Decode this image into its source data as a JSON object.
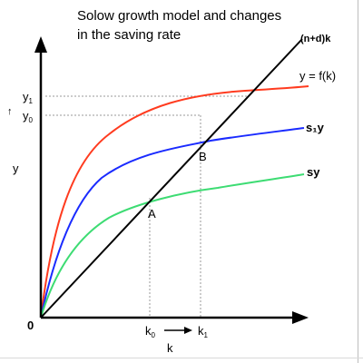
{
  "title_line1": "Solow growth model and changes",
  "title_line2": "in the saving rate",
  "labels": {
    "origin": "0",
    "y_axis": "y",
    "x_axis": "k",
    "y1": "y",
    "y1_sub": "1",
    "y0": "y",
    "y0_sub": "0",
    "up_arrow": "↑",
    "k0": "k",
    "k0_sub": "0",
    "k1": "k",
    "k1_sub": "1",
    "point_a": "A",
    "point_b": "B",
    "break_even": "(n+d)k",
    "production": "y = f(k)",
    "savings_new": "s₁y",
    "savings_old": "sy"
  },
  "colors": {
    "production": "#ff3b1f",
    "savings_new": "#1a2bff",
    "savings_old": "#3ddc73",
    "break_even": "#000000",
    "guides": "#9a9a9a"
  }
}
